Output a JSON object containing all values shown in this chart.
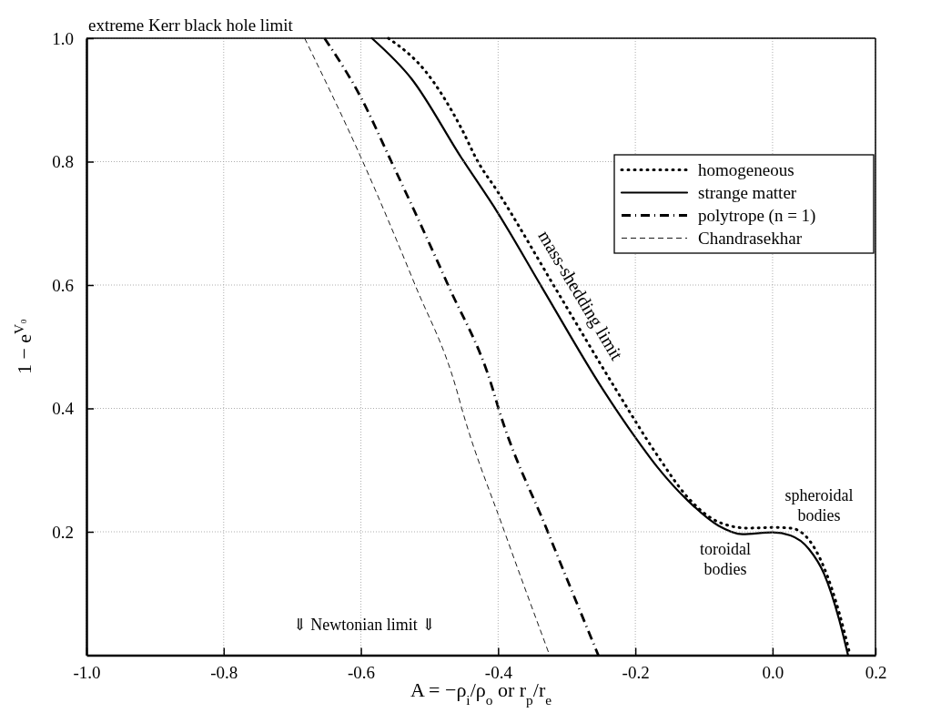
{
  "chart_data": {
    "type": "line",
    "xlabel": "A = −ρ$_{i}$/ρ$_{o}$ or r$_{p}$/r$_{e}$",
    "ylabel": "1 − e$^{V₀}$",
    "xlim": [
      -1.0,
      0.15
    ],
    "ylim": [
      0,
      1
    ],
    "xticks": [
      {
        "value": -1,
        "label": "-1.0"
      },
      {
        "value": -0.8,
        "label": "-0.8"
      },
      {
        "value": -0.6,
        "label": "-0.6"
      },
      {
        "value": -0.4,
        "label": "-0.4"
      },
      {
        "value": -0.2,
        "label": "-0.2"
      },
      {
        "value": 0,
        "label": "0.0"
      },
      {
        "value": 0.15,
        "label": "0.2"
      }
    ],
    "yticks": [
      {
        "value": 0.2,
        "label": "0.2"
      },
      {
        "value": 0.4,
        "label": "0.4"
      },
      {
        "value": 0.6,
        "label": "0.6"
      },
      {
        "value": 0.8,
        "label": "0.8"
      },
      {
        "value": 1,
        "label": "1.0"
      }
    ],
    "grid": true,
    "legend": "top right",
    "series": [
      {
        "name": "homogeneous",
        "color": "#000000",
        "line_style": "dotted",
        "x": [
          -0.56,
          -0.507,
          -0.454,
          -0.43,
          -0.401,
          -0.314,
          -0.229,
          -0.168,
          -0.123,
          -0.079,
          -0.036,
          0.0,
          0.026,
          0.053,
          0.075,
          0.097,
          0.113
        ],
        "values": [
          1.0,
          0.948,
          0.855,
          0.801,
          0.752,
          0.59,
          0.432,
          0.324,
          0.255,
          0.216,
          0.206,
          0.207,
          0.206,
          0.187,
          0.142,
          0.069,
          0
        ]
      },
      {
        "name": "strange matter",
        "color": "#000000",
        "line_style": "solid",
        "x": [
          -0.584,
          -0.526,
          -0.454,
          -0.401,
          -0.335,
          -0.248,
          -0.2,
          -0.168,
          -0.123,
          -0.079,
          -0.044,
          0.0,
          0.026,
          0.053,
          0.075,
          0.097,
          0.11
        ],
        "values": [
          1.0,
          0.934,
          0.807,
          0.718,
          0.594,
          0.432,
          0.353,
          0.305,
          0.25,
          0.21,
          0.196,
          0.199,
          0.194,
          0.172,
          0.132,
          0.058,
          0
        ]
      },
      {
        "name": "polytrope (n = 1)",
        "color": "#000000",
        "line_style": "dashdot",
        "x": [
          -0.653,
          -0.6,
          -0.556,
          -0.473,
          -0.408,
          -0.4,
          -0.328,
          -0.254
        ],
        "values": [
          1.0,
          0.904,
          0.801,
          0.6,
          0.432,
          0.402,
          0.201,
          0
        ]
      },
      {
        "name": "Chandrasekhar",
        "color": "#000000",
        "line_style": "dashed",
        "x": [
          -0.682,
          -0.6,
          -0.521,
          -0.461,
          -0.453,
          -0.391,
          -0.325
        ],
        "values": [
          1.0,
          0.807,
          0.6,
          0.432,
          0.4,
          0.201,
          0
        ]
      }
    ],
    "annotations": [
      "extreme Kerr black hole limit",
      {
        "text": "mass-shedding limit",
        "x": -0.3,
        "y": 0.57
      },
      "toroidal\nbodies",
      "spheroidal\nbodies",
      "⇓   Newtonian limit   ⇓"
    ]
  }
}
